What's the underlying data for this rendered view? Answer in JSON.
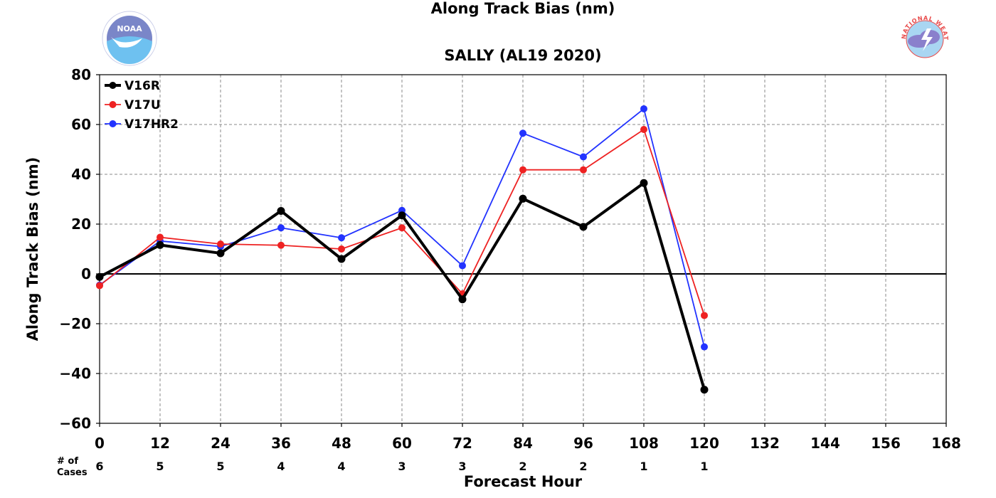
{
  "chart_data": {
    "type": "line",
    "title": "Along Track Bias (nm)",
    "subtitle": "SALLY (AL19 2020)",
    "xlabel": "Forecast Hour",
    "ylabel": "Along Track Bias (nm)",
    "xlim": [
      0,
      168
    ],
    "ylim": [
      -60,
      80
    ],
    "x_ticks": [
      0,
      12,
      24,
      36,
      48,
      60,
      72,
      84,
      96,
      108,
      120,
      132,
      144,
      156,
      168
    ],
    "y_ticks": [
      -60,
      -40,
      -20,
      0,
      20,
      40,
      60,
      80
    ],
    "x_tick_labels": [
      "0",
      "12",
      "24",
      "36",
      "48",
      "60",
      "72",
      "84",
      "96",
      "108",
      "120",
      "132",
      "144",
      "156",
      "168"
    ],
    "y_tick_labels": [
      "−60",
      "−40",
      "−20",
      "0",
      "20",
      "40",
      "60",
      "80"
    ],
    "grid": true,
    "legend_position": "top-left",
    "x": [
      0,
      12,
      24,
      36,
      48,
      60,
      72,
      84,
      96,
      108,
      120
    ],
    "series": [
      {
        "name": "V17HR2",
        "color": "#2233ff",
        "values": [
          -4.5,
          13.2,
          11.0,
          18.5,
          14.5,
          25.5,
          3.3,
          56.5,
          47.0,
          66.3,
          -29.3
        ]
      },
      {
        "name": "V17U",
        "color": "#ee2222",
        "values": [
          -4.7,
          14.7,
          12.0,
          11.5,
          10.0,
          18.5,
          -8.0,
          41.8,
          41.8,
          58.0,
          -16.7
        ]
      },
      {
        "name": "V16R",
        "color": "#000000",
        "values": [
          -1.2,
          11.6,
          8.3,
          25.3,
          6.0,
          23.5,
          -10.2,
          30.2,
          18.9,
          36.5,
          -46.5
        ]
      }
    ],
    "legend_order": [
      "V16R",
      "V17U",
      "V17HR2"
    ],
    "cases_label": "# of\nCases",
    "cases_label_lines": [
      "# of",
      "Cases"
    ],
    "cases": [
      6,
      5,
      5,
      4,
      4,
      3,
      3,
      2,
      2,
      1,
      1
    ]
  },
  "logos": {
    "left": "NOAA",
    "right_text": "NATIONAL WEATHER SERVICE"
  }
}
